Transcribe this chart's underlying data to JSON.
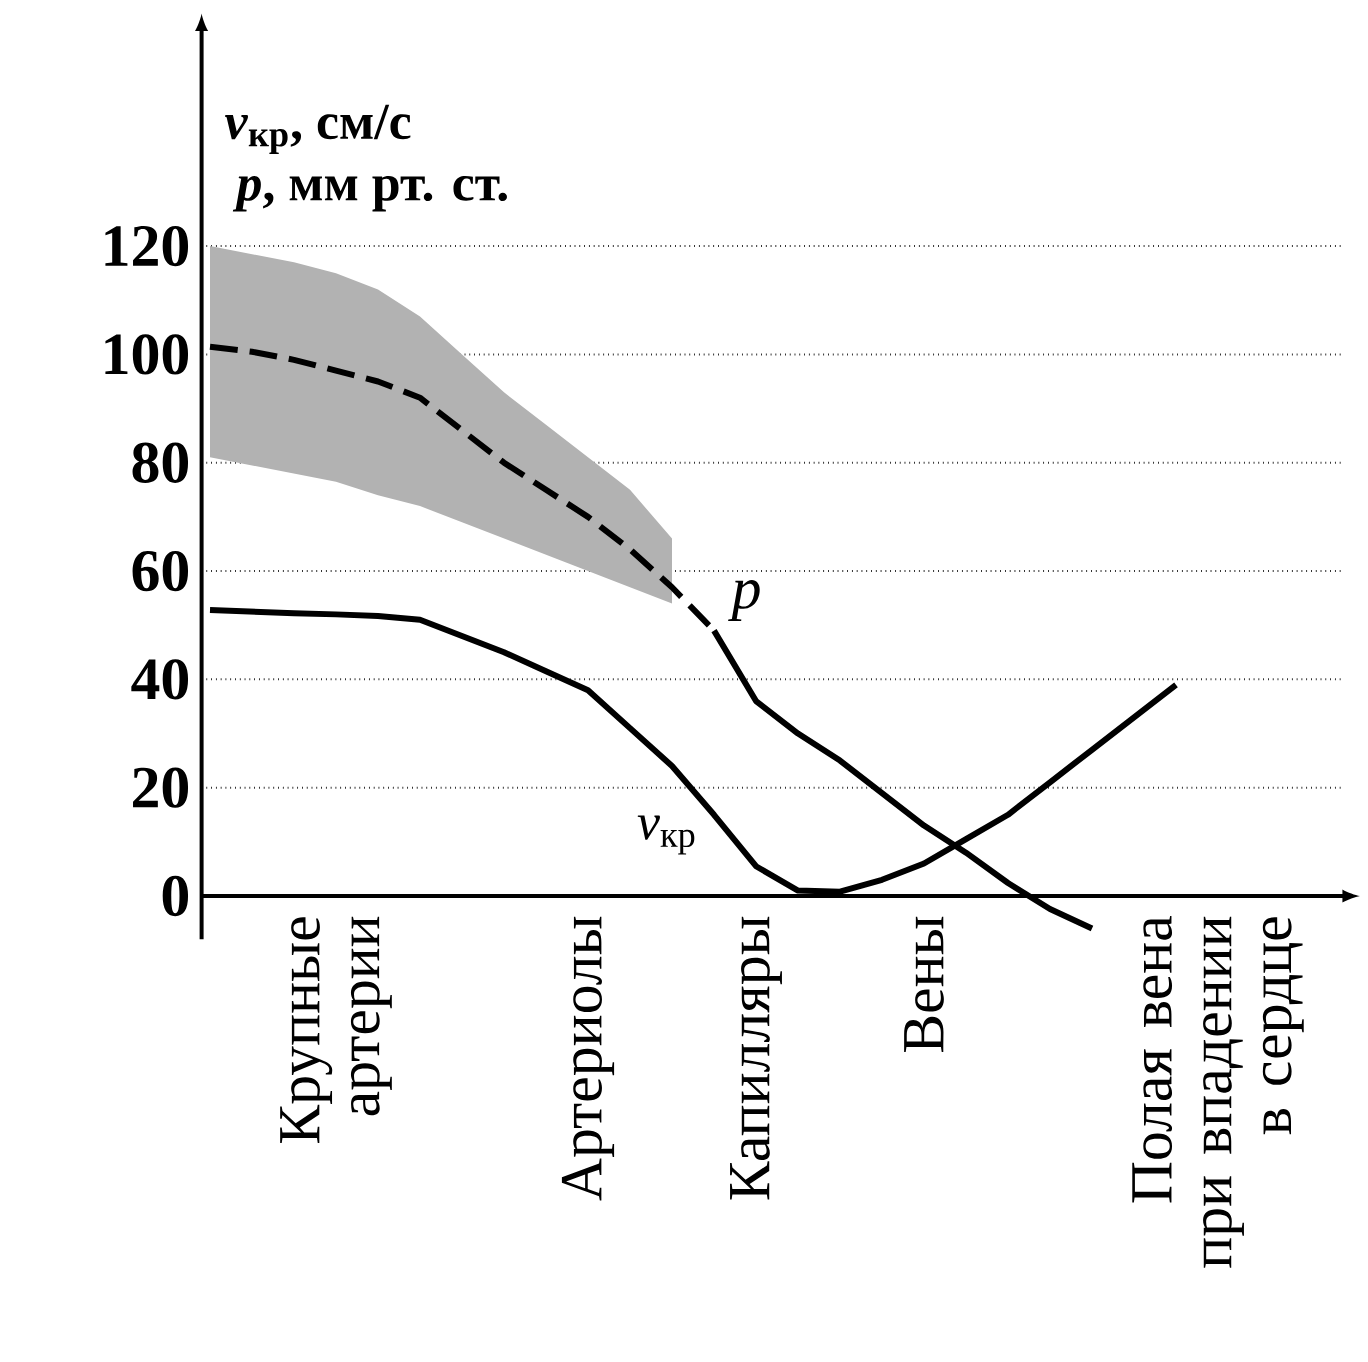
{
  "chart_data": {
    "type": "line",
    "ylabel": "*v*$_{кр}$,  см/с",
    "annotations": [
      "*p*, мм рт. ст."
    ],
    "categories": [
      null,
      null,
      null,
      "Крупные артерии",
      null,
      null,
      null,
      null,
      null,
      "Артериолы",
      null,
      null,
      null,
      "Капилляры",
      null,
      null,
      null,
      "Вены",
      null,
      null,
      null,
      null,
      null,
      null,
      "Полая вена при впадении в сердце",
      null,
      null
    ],
    "series": [
      {
        "name": "*v*$_{кр}$",
        "color": "#000000",
        "line_style": "solid",
        "values": [
          52.8,
          52.5,
          52.2,
          52,
          51.7,
          51,
          48,
          45,
          41.5,
          38,
          31,
          24,
          15,
          5.5,
          1,
          0.8,
          3,
          6,
          10.5,
          15,
          21,
          27,
          33,
          39,
          null,
          null,
          null
        ]
      },
      {
        "name": "*p*",
        "color": "#000000",
        "line_style": "dashed",
        "values": [
          101.4,
          100.5,
          99,
          97,
          95,
          92,
          86,
          80,
          75,
          70,
          64,
          57,
          49,
          null,
          null,
          null,
          null,
          null,
          null,
          null,
          null,
          null,
          null,
          null,
          null,
          null,
          null
        ],
        "upper": [
          120,
          118.5,
          117,
          115,
          112,
          107,
          100,
          93,
          87,
          81,
          75,
          66,
          null,
          null,
          null,
          null,
          null,
          null,
          null,
          null,
          null,
          null,
          null,
          null,
          null,
          null,
          null
        ],
        "lower": [
          81,
          79.5,
          78,
          76.5,
          74,
          72,
          69,
          66,
          63,
          60,
          57,
          54,
          null,
          null,
          null,
          null,
          null,
          null,
          null,
          null,
          null,
          null,
          null,
          null,
          null,
          null,
          null
        ]
      },
      {
        "color": "#000000",
        "line_style": "solid",
        "values": [
          null,
          null,
          null,
          null,
          null,
          null,
          null,
          null,
          null,
          null,
          null,
          null,
          49,
          36,
          30,
          25,
          19,
          13,
          8,
          2.4,
          -2.4,
          -6,
          null,
          null,
          null,
          null,
          null
        ]
      }
    ],
    "ylim": [
      -8,
      160
    ],
    "yticks": [
      0,
      20,
      40,
      60,
      80,
      100,
      120
    ],
    "grid": "y"
  }
}
